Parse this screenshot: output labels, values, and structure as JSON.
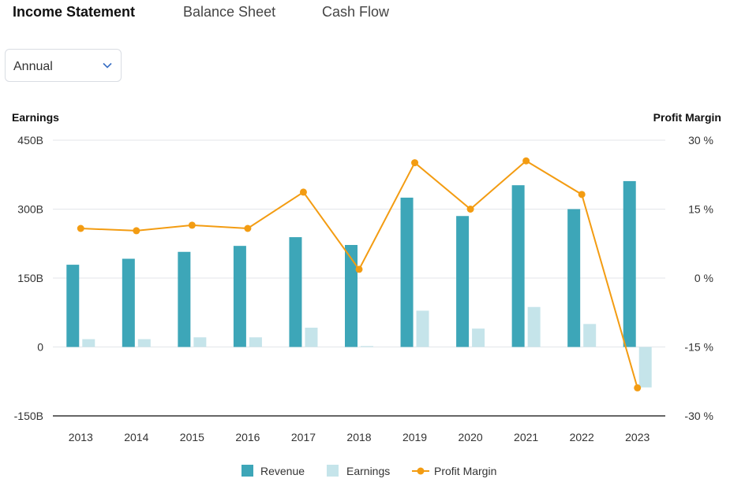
{
  "tabs": {
    "income": "Income Statement",
    "balance": "Balance Sheet",
    "cash": "Cash Flow"
  },
  "period_select": {
    "value": "Annual",
    "icon": "chevron-down-icon"
  },
  "colors": {
    "revenue": "#3da6b8",
    "earnings": "#c5e4ea",
    "margin": "#f39c12",
    "grid": "#e3e6ea",
    "baseline": "#333333"
  },
  "chart_data": {
    "type": "bar",
    "categories": [
      "2013",
      "2014",
      "2015",
      "2016",
      "2017",
      "2018",
      "2019",
      "2020",
      "2021",
      "2022",
      "2023"
    ],
    "y_left_label": "Earnings",
    "y_right_label": "Profit Margin",
    "y_left_ticks": [
      "450B",
      "300B",
      "150B",
      "0",
      "-150B"
    ],
    "y_right_ticks": [
      "30 %",
      "15 %",
      "0 %",
      "-15 %",
      "-30 %"
    ],
    "y_left_lim": [
      -150,
      450
    ],
    "y_right_lim": [
      -30,
      30
    ],
    "series": [
      {
        "name": "Revenue",
        "type": "bar",
        "axis": "left",
        "values": [
          179,
          192,
          207,
          220,
          239,
          222,
          325,
          285,
          352,
          300,
          361
        ]
      },
      {
        "name": "Earnings",
        "type": "bar",
        "axis": "left",
        "values": [
          17,
          17,
          21,
          21,
          42,
          2,
          79,
          40,
          87,
          50,
          -88
        ]
      },
      {
        "name": "Profit Margin",
        "type": "line",
        "axis": "right",
        "values": [
          10.8,
          10.3,
          11.5,
          10.8,
          18.7,
          1.9,
          25.1,
          15.0,
          25.5,
          18.2,
          -23.9
        ]
      }
    ],
    "legend": {
      "position": "bottom"
    },
    "grid": true
  }
}
